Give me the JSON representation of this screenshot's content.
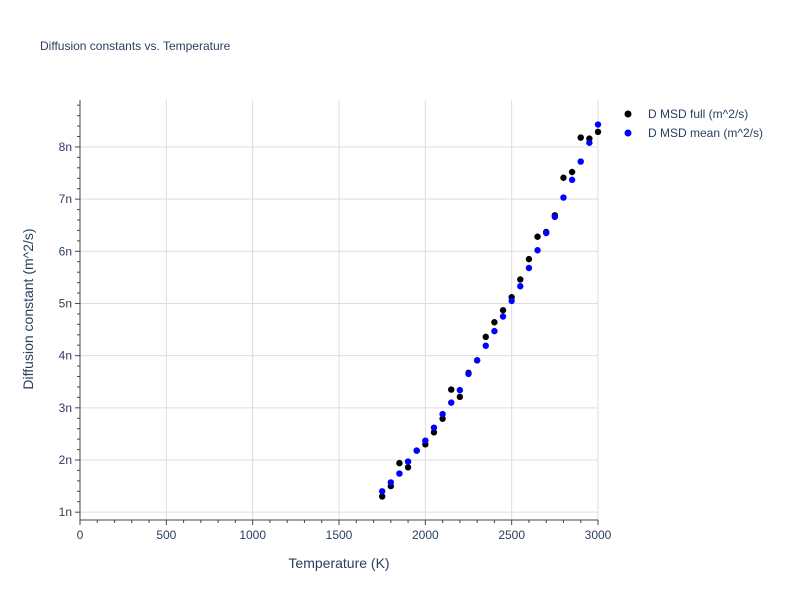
{
  "chart_data": {
    "type": "scatter",
    "title": "Diffusion constants vs. Temperature",
    "xlabel": "Temperature (K)",
    "ylabel": "Diffusion constant (m^2/s)",
    "xlim": [
      0,
      3000
    ],
    "ylim": [
      8.5e-10,
      8.9e-09
    ],
    "x_ticks": [
      0,
      500,
      1000,
      1500,
      2000,
      2500,
      3000
    ],
    "x_tick_labels": [
      "0",
      "500",
      "1000",
      "1500",
      "2000",
      "2500",
      "3000"
    ],
    "y_ticks": [
      1e-09,
      2e-09,
      3e-09,
      4e-09,
      5e-09,
      6e-09,
      7e-09,
      8e-09
    ],
    "y_tick_labels": [
      "1n",
      "2n",
      "3n",
      "4n",
      "5n",
      "6n",
      "7n",
      "8n"
    ],
    "grid": true,
    "legend_position": "top-right",
    "series": [
      {
        "name": "D MSD full (m^2/s)",
        "color": "#000000",
        "x": [
          1750,
          1800,
          1850,
          1900,
          1950,
          2000,
          2050,
          2100,
          2150,
          2200,
          2250,
          2300,
          2350,
          2400,
          2450,
          2500,
          2550,
          2600,
          2650,
          2700,
          2750,
          2800,
          2850,
          2900,
          2950,
          3000
        ],
        "y": [
          1.3e-09,
          1.5e-09,
          1.94e-09,
          1.86e-09,
          2.18e-09,
          2.3e-09,
          2.53e-09,
          2.79e-09,
          3.35e-09,
          3.21e-09,
          3.67e-09,
          3.91e-09,
          4.36e-09,
          4.64e-09,
          4.87e-09,
          5.12e-09,
          5.46e-09,
          5.85e-09,
          6.28e-09,
          6.37e-09,
          6.69e-09,
          7.41e-09,
          7.52e-09,
          8.18e-09,
          8.16e-09,
          8.29e-09
        ]
      },
      {
        "name": "D MSD mean (m^2/s)",
        "color": "#0000ff",
        "x": [
          1750,
          1800,
          1850,
          1900,
          1950,
          2000,
          2050,
          2100,
          2150,
          2200,
          2250,
          2300,
          2350,
          2400,
          2450,
          2500,
          2550,
          2600,
          2650,
          2700,
          2750,
          2800,
          2850,
          2900,
          2950,
          3000
        ],
        "y": [
          1.4e-09,
          1.57e-09,
          1.74e-09,
          1.97e-09,
          2.18e-09,
          2.37e-09,
          2.62e-09,
          2.88e-09,
          3.1e-09,
          3.34e-09,
          3.65e-09,
          3.91e-09,
          4.19e-09,
          4.47e-09,
          4.75e-09,
          5.05e-09,
          5.33e-09,
          5.68e-09,
          6.02e-09,
          6.35e-09,
          6.66e-09,
          7.03e-09,
          7.37e-09,
          7.72e-09,
          8.08e-09,
          8.43e-09
        ]
      }
    ]
  }
}
